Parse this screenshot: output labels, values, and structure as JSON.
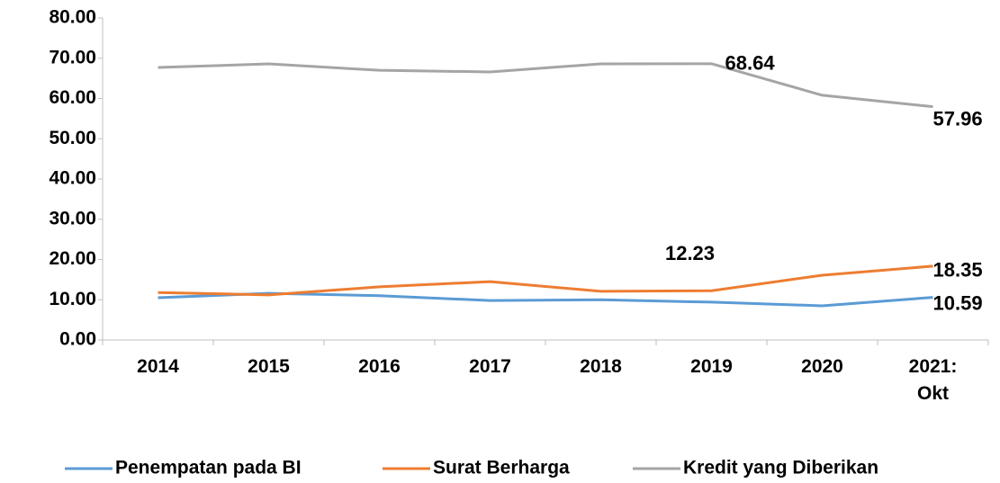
{
  "chart_data": {
    "type": "line",
    "categories": [
      "2014",
      "2015",
      "2016",
      "2017",
      "2018",
      "2019",
      "2020",
      "2021: Okt"
    ],
    "series": [
      {
        "name": "Penempatan pada BI",
        "color": "#5b9bd5",
        "values": [
          10.5,
          11.6,
          11.0,
          9.8,
          10.0,
          9.4,
          8.5,
          10.59
        ],
        "value_labels": [
          null,
          null,
          null,
          null,
          null,
          null,
          null,
          "10.59"
        ]
      },
      {
        "name": "Surat Berharga",
        "color": "#ed7d31",
        "values": [
          11.8,
          11.2,
          13.2,
          14.5,
          12.1,
          12.23,
          16.1,
          18.35
        ],
        "value_labels": [
          null,
          null,
          null,
          null,
          null,
          "12.23",
          null,
          "18.35"
        ]
      },
      {
        "name": "Kredit yang Diberikan",
        "color": "#a5a5a5",
        "values": [
          67.7,
          68.6,
          67.0,
          66.6,
          68.6,
          68.64,
          60.8,
          57.96
        ],
        "value_labels": [
          null,
          null,
          null,
          null,
          null,
          "68.64",
          null,
          "57.96"
        ]
      }
    ],
    "ylim": [
      0,
      80
    ],
    "yticks": [
      {
        "value": 0,
        "label": "0.00"
      },
      {
        "value": 10,
        "label": "10.00"
      },
      {
        "value": 20,
        "label": "20.00"
      },
      {
        "value": 30,
        "label": "30.00"
      },
      {
        "value": 40,
        "label": "40.00"
      },
      {
        "value": 50,
        "label": "50.00"
      },
      {
        "value": 60,
        "label": "60.00"
      },
      {
        "value": 70,
        "label": "70.00"
      },
      {
        "value": 80,
        "label": "80.00"
      }
    ],
    "grid": false,
    "legend": "bottom"
  }
}
